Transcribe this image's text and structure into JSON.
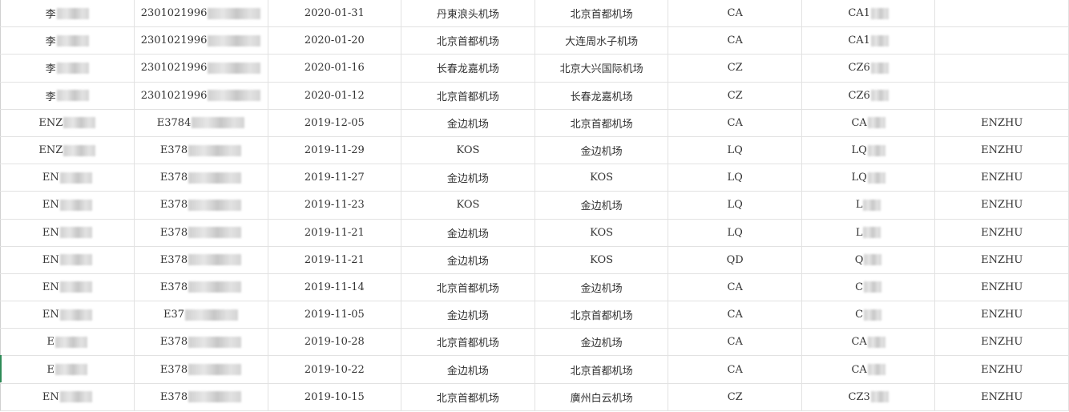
{
  "rows": [
    {
      "name": "李",
      "id": "2301021996",
      "date": "2020-01-31",
      "from": "丹東浪头机场",
      "to": "北京首都机场",
      "airline": "CA",
      "flight": "CA1",
      "passenger": ""
    },
    {
      "name": "李",
      "id": "2301021996",
      "date": "2020-01-20",
      "from": "北京首都机场",
      "to": "大连周水子机场",
      "airline": "CA",
      "flight": "CA1",
      "passenger": ""
    },
    {
      "name": "李",
      "id": "2301021996",
      "date": "2020-01-16",
      "from": "长春龙嘉机场",
      "to": "北京大兴国际机场",
      "airline": "CZ",
      "flight": "CZ6",
      "passenger": ""
    },
    {
      "name": "李",
      "id": "2301021996",
      "date": "2020-01-12",
      "from": "北京首都机场",
      "to": "长春龙嘉机场",
      "airline": "CZ",
      "flight": "CZ6",
      "passenger": ""
    },
    {
      "name": "ENZ",
      "id": "E3784",
      "date": "2019-12-05",
      "from": "金边机场",
      "to": "北京首都机场",
      "airline": "CA",
      "flight": "CA",
      "passenger": "ENZHU"
    },
    {
      "name": "ENZ",
      "id": "E378",
      "date": "2019-11-29",
      "from": "KOS",
      "to": "金边机场",
      "airline": "LQ",
      "flight": "LQ",
      "passenger": "ENZHU"
    },
    {
      "name": "EN",
      "id": "E378",
      "date": "2019-11-27",
      "from": "金边机场",
      "to": "KOS",
      "airline": "LQ",
      "flight": "LQ",
      "passenger": "ENZHU"
    },
    {
      "name": "EN",
      "id": "E378",
      "date": "2019-11-23",
      "from": "KOS",
      "to": "金边机场",
      "airline": "LQ",
      "flight": "L",
      "passenger": "ENZHU"
    },
    {
      "name": "EN",
      "id": "E378",
      "date": "2019-11-21",
      "from": "金边机场",
      "to": "KOS",
      "airline": "LQ",
      "flight": "L",
      "passenger": "ENZHU"
    },
    {
      "name": "EN",
      "id": "E378",
      "date": "2019-11-21",
      "from": "金边机场",
      "to": "KOS",
      "airline": "QD",
      "flight": "Q",
      "passenger": "ENZHU"
    },
    {
      "name": "EN",
      "id": "E378",
      "date": "2019-11-14",
      "from": "北京首都机场",
      "to": "金边机场",
      "airline": "CA",
      "flight": "C",
      "passenger": "ENZHU"
    },
    {
      "name": "EN",
      "id": "E37",
      "date": "2019-11-05",
      "from": "金边机场",
      "to": "北京首都机场",
      "airline": "CA",
      "flight": "C",
      "passenger": "ENZHU"
    },
    {
      "name": "E",
      "id": "E378",
      "date": "2019-10-28",
      "from": "北京首都机场",
      "to": "金边机场",
      "airline": "CA",
      "flight": "CA",
      "passenger": "ENZHU"
    },
    {
      "name": "E",
      "id": "E378",
      "date": "2019-10-22",
      "from": "金边机场",
      "to": "北京首都机场",
      "airline": "CA",
      "flight": "CA",
      "passenger": "ENZHU"
    },
    {
      "name": "EN",
      "id": "E378",
      "date": "2019-10-15",
      "from": "北京首都机场",
      "to": "廣州白云机场",
      "airline": "CZ",
      "flight": "CZ3",
      "passenger": "ENZHU"
    }
  ]
}
